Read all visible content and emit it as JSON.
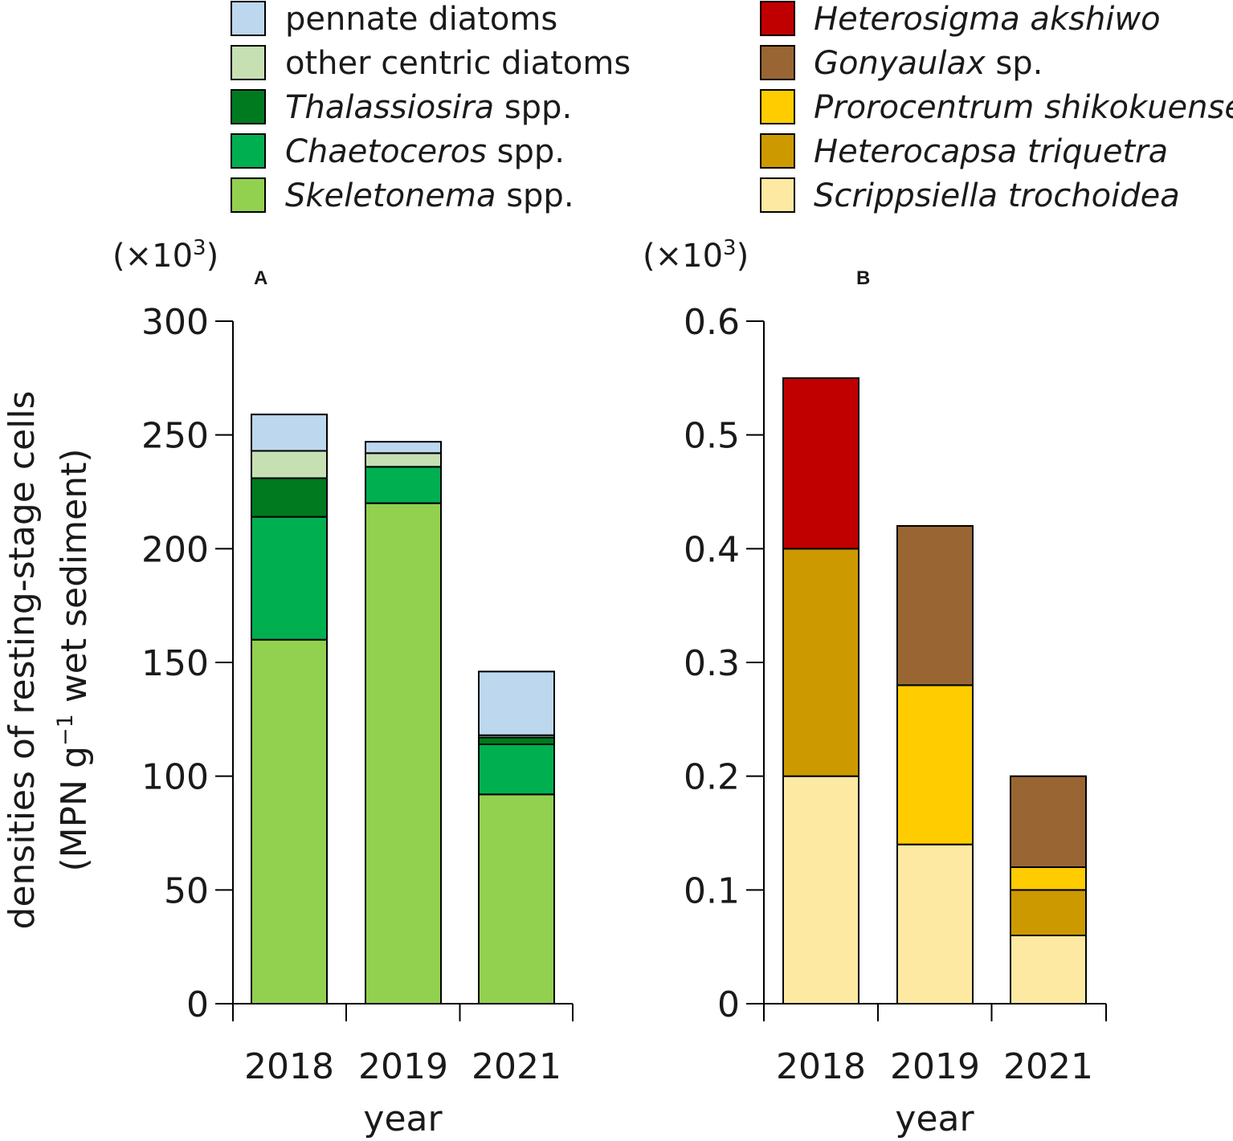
{
  "chart_data": [
    {
      "type": "bar",
      "stacked": true,
      "panel": "A",
      "unit_prefix": "(×10",
      "unit_exponent": "3",
      "unit_suffix": ")",
      "categories": [
        "2018",
        "2019",
        "2021"
      ],
      "xlabel": "year",
      "ylabel_line1": "densities of resting-stage cells",
      "ylabel_line2_before": "(MPN g",
      "ylabel_line2_sup": "−1",
      "ylabel_line2_after": " wet sediment)",
      "ylim": [
        0,
        300
      ],
      "yticks": [
        "0",
        "50",
        "100",
        "150",
        "200",
        "250",
        "300"
      ],
      "series": [
        {
          "name": "Skeletonema spp.",
          "color": "#92d050",
          "values": [
            160,
            220,
            92
          ]
        },
        {
          "name": "Chaetoceros spp.",
          "color": "#00b050",
          "values": [
            54,
            16,
            22
          ]
        },
        {
          "name": "Thalassiosira spp.",
          "color": "#007a1f",
          "values": [
            17,
            0,
            3
          ]
        },
        {
          "name": "other centric diatoms",
          "color": "#c6e0b4",
          "values": [
            12,
            6,
            1
          ]
        },
        {
          "name": "pennate diatoms",
          "color": "#bdd7ee",
          "values": [
            16,
            5,
            28
          ]
        }
      ]
    },
    {
      "type": "bar",
      "stacked": true,
      "panel": "B",
      "unit_prefix": "(×10",
      "unit_exponent": "3",
      "unit_suffix": ")",
      "categories": [
        "2018",
        "2019",
        "2021"
      ],
      "xlabel": "year",
      "ylim": [
        0,
        0.6
      ],
      "yticks": [
        "0",
        "0.1",
        "0.2",
        "0.3",
        "0.4",
        "0.5",
        "0.6"
      ],
      "series": [
        {
          "name": "Scrippsiella trochoidea",
          "color": "#fde9a2",
          "values": [
            0.2,
            0.14,
            0.06
          ]
        },
        {
          "name": "Heterocapsa triquetra",
          "color": "#cc9900",
          "values": [
            0.2,
            0,
            0.04
          ]
        },
        {
          "name": "Prorocentrum shikokuense",
          "color": "#ffcc00",
          "values": [
            0,
            0.14,
            0.02
          ]
        },
        {
          "name": "Gonyaulax sp.",
          "color": "#996633",
          "values": [
            0,
            0.14,
            0.08
          ]
        },
        {
          "name": "Heterosigma akshiwo",
          "color": "#c00000",
          "values": [
            0.15,
            0,
            0
          ]
        }
      ]
    }
  ],
  "legend": {
    "left": [
      {
        "italic": "",
        "plain": "pennate diatoms",
        "color": "#bdd7ee"
      },
      {
        "italic": "",
        "plain": "other centric diatoms",
        "color": "#c6e0b4"
      },
      {
        "italic": "Thalassiosira",
        "plain": " spp.",
        "color": "#007a1f"
      },
      {
        "italic": "Chaetoceros",
        "plain": " spp.",
        "color": "#00b050"
      },
      {
        "italic": "Skeletonema",
        "plain": " spp.",
        "color": "#92d050"
      }
    ],
    "right": [
      {
        "italic": "Heterosigma akshiwo",
        "plain": "",
        "color": "#c00000"
      },
      {
        "italic": "Gonyaulax",
        "plain": " sp.",
        "color": "#996633"
      },
      {
        "italic": "Prorocentrum shikokuense",
        "plain": "",
        "color": "#ffcc00"
      },
      {
        "italic": "Heterocapsa triquetra",
        "plain": "",
        "color": "#cc9900"
      },
      {
        "italic": "Scrippsiella trochoidea",
        "plain": "",
        "color": "#fde9a2"
      }
    ]
  }
}
